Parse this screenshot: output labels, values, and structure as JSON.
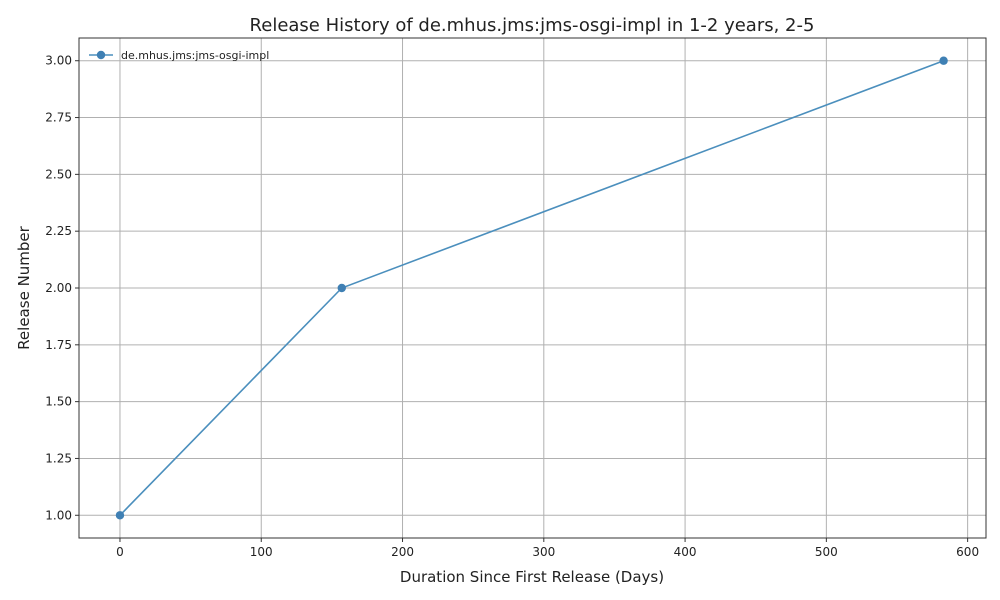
{
  "chart_data": {
    "type": "line",
    "title": "Release History of de.mhus.jms:jms-osgi-impl in 1-2 years, 2-5",
    "xlabel": "Duration Since First Release (Days)",
    "ylabel": "Release Number",
    "xlim": [
      -29,
      613
    ],
    "ylim": [
      0.9,
      3.1
    ],
    "xticks": [
      0,
      100,
      200,
      300,
      400,
      500,
      600
    ],
    "yticks": [
      1.0,
      1.25,
      1.5,
      1.75,
      2.0,
      2.25,
      2.5,
      2.75,
      3.0
    ],
    "ytick_labels": [
      "1.00",
      "1.25",
      "1.50",
      "1.75",
      "2.00",
      "2.25",
      "2.50",
      "2.75",
      "3.00"
    ],
    "grid": true,
    "legend_position": "top-left",
    "series": [
      {
        "name": "de.mhus.jms:jms-osgi-impl",
        "color": "#4b8fbd",
        "marker": "circle",
        "x": [
          0,
          157,
          583
        ],
        "y": [
          1,
          2,
          3
        ]
      }
    ]
  }
}
